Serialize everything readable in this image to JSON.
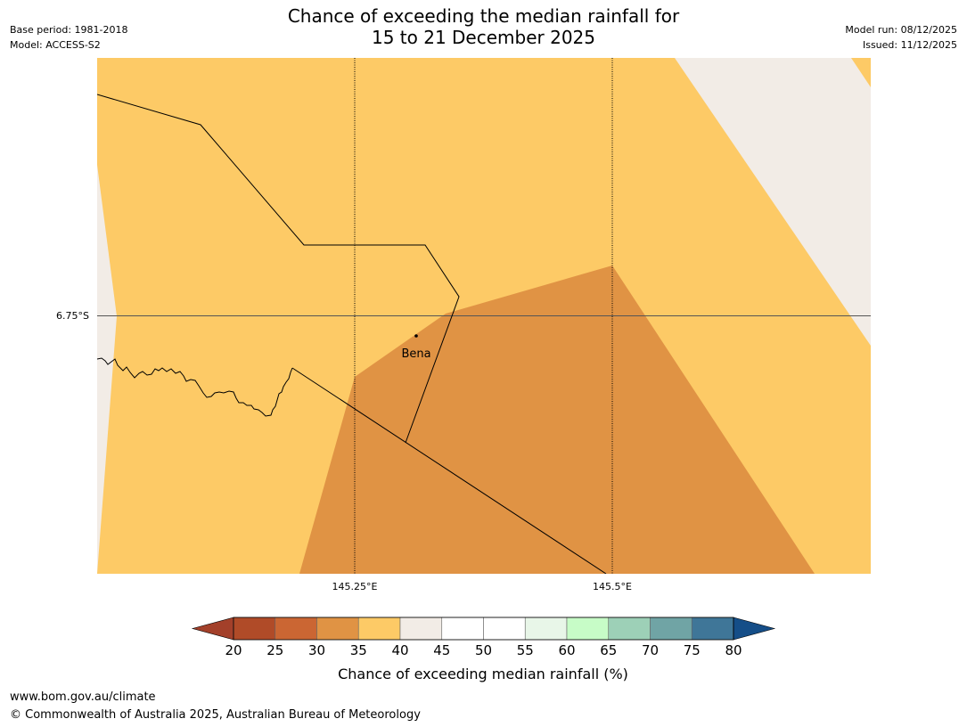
{
  "title": {
    "line1": "Chance of exceeding the median rainfall for",
    "line2": "15 to 21 December 2025"
  },
  "meta_left": {
    "base_period": "Base period: 1981-2018",
    "model": "Model: ACCESS-S2"
  },
  "meta_right": {
    "model_run": "Model run: 08/12/2025",
    "issued": "Issued: 11/12/2025"
  },
  "map": {
    "lat_label": "6.75°S",
    "lon_labels": [
      "145.25°E",
      "145.5°E"
    ],
    "place": "Bena"
  },
  "legend": {
    "ticks": [
      "20",
      "25",
      "30",
      "35",
      "40",
      "45",
      "50",
      "55",
      "60",
      "65",
      "70",
      "75",
      "80"
    ],
    "colors": [
      "#a3402a",
      "#b04b28",
      "#cb6633",
      "#e09344",
      "#fdca66",
      "#f2ece6",
      "#ffffff",
      "#ffffff",
      "#e8f6e8",
      "#c7fcc7",
      "#9dd0b7",
      "#70a4a5",
      "#3f7698",
      "#154e88"
    ],
    "label": "Chance of exceeding median rainfall (%)"
  },
  "footer": {
    "url": "www.bom.gov.au/climate",
    "copyright": "© Commonwealth of Australia 2025, Australian Bureau of Meteorology"
  }
}
